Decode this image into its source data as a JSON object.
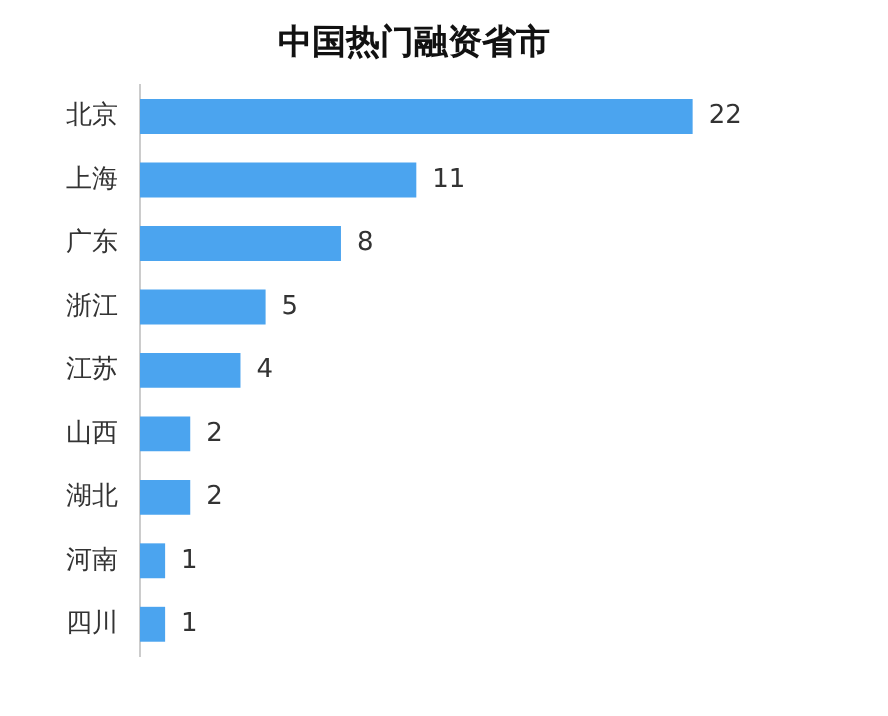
{
  "chart_data": {
    "type": "bar",
    "orientation": "horizontal",
    "title": "中国热门融资省市",
    "categories": [
      "北京",
      "上海",
      "广东",
      "浙江",
      "江苏",
      "山西",
      "湖北",
      "河南",
      "四川"
    ],
    "values": [
      22,
      11,
      8,
      5,
      4,
      2,
      2,
      1,
      1
    ],
    "color": "#4ba4ef",
    "data_labels": true,
    "legend": false,
    "tick_labels": "y"
  }
}
